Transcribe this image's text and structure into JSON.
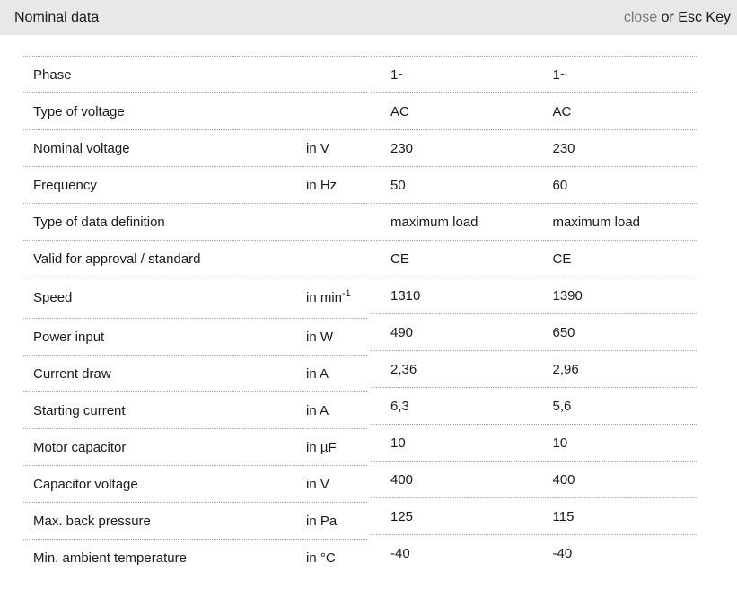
{
  "header": {
    "title": "Nominal data",
    "close_label": "close",
    "close_suffix": " or Esc Key"
  },
  "colors": {
    "header_bg": "#e8e8e8",
    "page_bg": "#ffffff",
    "text": "#1a1a1a",
    "close_link": "#777777",
    "divider": "#a3a3a3"
  },
  "table": {
    "rows": [
      {
        "label": "Phase",
        "unit": "",
        "unit_sup": "",
        "values": [
          "1~",
          "1~"
        ]
      },
      {
        "label": "Type of voltage",
        "unit": "",
        "unit_sup": "",
        "values": [
          "AC",
          "AC"
        ]
      },
      {
        "label": "Nominal voltage",
        "unit": "in V",
        "unit_sup": "",
        "values": [
          "230",
          "230"
        ]
      },
      {
        "label": "Frequency",
        "unit": "in Hz",
        "unit_sup": "",
        "values": [
          "50",
          "60"
        ]
      },
      {
        "label": "Type of data definition",
        "unit": "",
        "unit_sup": "",
        "values": [
          "maximum load",
          "maximum load"
        ]
      },
      {
        "label": "Valid for approval / standard",
        "unit": "",
        "unit_sup": "",
        "values": [
          "CE",
          "CE"
        ]
      },
      {
        "label": "Speed",
        "unit": "in min",
        "unit_sup": "-1",
        "values": [
          "1310",
          "1390"
        ]
      },
      {
        "label": "Power input",
        "unit": "in W",
        "unit_sup": "",
        "values": [
          "490",
          "650"
        ]
      },
      {
        "label": "Current draw",
        "unit": "in A",
        "unit_sup": "",
        "values": [
          "2,36",
          "2,96"
        ]
      },
      {
        "label": "Starting current",
        "unit": "in A",
        "unit_sup": "",
        "values": [
          "6,3",
          "5,6"
        ]
      },
      {
        "label": "Motor capacitor",
        "unit": "in µF",
        "unit_sup": "",
        "values": [
          "10",
          "10"
        ]
      },
      {
        "label": "Capacitor voltage",
        "unit": "in V",
        "unit_sup": "",
        "values": [
          "400",
          "400"
        ]
      },
      {
        "label": "Max. back pressure",
        "unit": "in Pa",
        "unit_sup": "",
        "values": [
          "125",
          "115"
        ]
      },
      {
        "label": "Min. ambient temperature",
        "unit": "in °C",
        "unit_sup": "",
        "values": [
          "-40",
          "-40"
        ]
      }
    ]
  }
}
